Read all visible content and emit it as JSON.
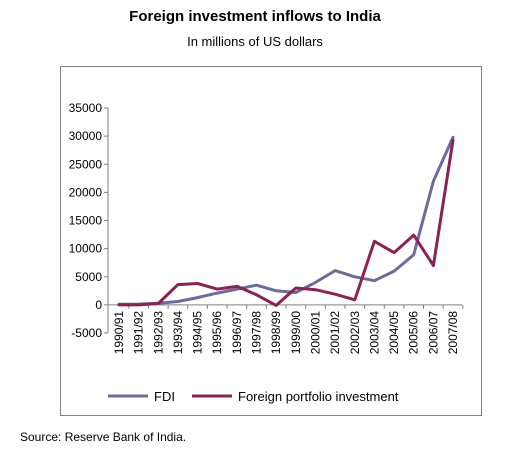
{
  "title": "Foreign investment inflows to India",
  "subtitle": "In millions of US dollars",
  "source": "Source: Reserve Bank of India.",
  "chart_data": {
    "type": "line",
    "title": "Foreign investment inflows to India",
    "subtitle": "In millions of US dollars",
    "categories": [
      "1990/91",
      "1991/92",
      "1992/93",
      "1993/94",
      "1994/95",
      "1995/96",
      "1996/97",
      "1997/98",
      "1998/99",
      "1999/00",
      "2000/01",
      "2001/02",
      "2002/03",
      "2003/04",
      "2004/05",
      "2005/06",
      "2006/07",
      "2007/08"
    ],
    "series": [
      {
        "name": "FDI",
        "color": "#6b6b9e",
        "values": [
          100,
          130,
          300,
          600,
          1300,
          2100,
          2800,
          3500,
          2500,
          2200,
          4000,
          6100,
          5000,
          4300,
          6000,
          8900,
          22000,
          29800
        ]
      },
      {
        "name": "Foreign portfolio investment",
        "color": "#8b2252",
        "values": [
          0,
          0,
          250,
          3600,
          3800,
          2800,
          3300,
          1800,
          -100,
          3000,
          2700,
          1900,
          900,
          11300,
          9300,
          12400,
          7000,
          29300
        ]
      }
    ],
    "yticks": [
      -5000,
      0,
      5000,
      10000,
      15000,
      20000,
      25000,
      30000,
      35000
    ],
    "ytick_labels": [
      "-5000",
      "0",
      "5000",
      "10000",
      "15000",
      "20000",
      "25000",
      "30000",
      "35000"
    ],
    "ylim": [
      -5000,
      35000
    ],
    "grid": false,
    "legend_position": "bottom"
  }
}
